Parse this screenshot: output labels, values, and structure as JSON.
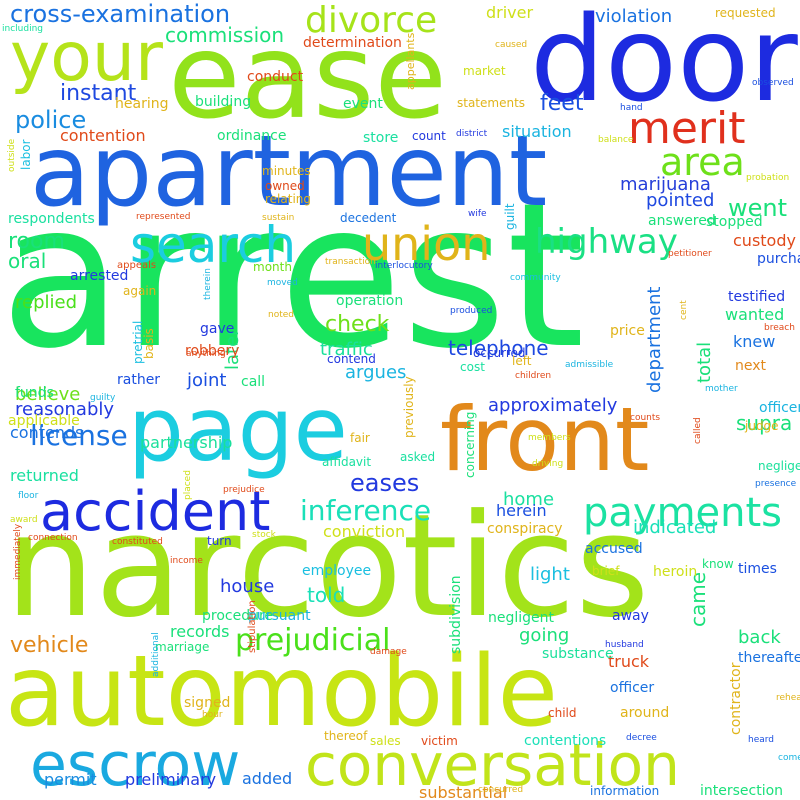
{
  "words": [
    {
      "text": "arrest",
      "color": "#18e45e"
    },
    {
      "text": "narcotics",
      "color": "#a3e31a"
    },
    {
      "text": "automobile",
      "color": "#c7e514"
    },
    {
      "text": "apartment",
      "color": "#1f63e0"
    },
    {
      "text": "ease",
      "color": "#92e21b"
    },
    {
      "text": "door",
      "color": "#1d2be0"
    },
    {
      "text": "page",
      "color": "#1bcde0"
    },
    {
      "text": "front",
      "color": "#e2891b"
    },
    {
      "text": "your",
      "color": "#b5e31a"
    },
    {
      "text": "conversation",
      "color": "#c1e41a"
    },
    {
      "text": "escrow",
      "color": "#1aa9e0"
    },
    {
      "text": "accident",
      "color": "#1d2be0"
    },
    {
      "text": "search",
      "color": "#1bcde0"
    },
    {
      "text": "union",
      "color": "#e0b41a"
    },
    {
      "text": "merit",
      "color": "#e0301d"
    },
    {
      "text": "area",
      "color": "#6ee01a"
    },
    {
      "text": "payments",
      "color": "#1be2a2"
    },
    {
      "text": "divorce",
      "color": "#a6e31a"
    },
    {
      "text": "highway",
      "color": "#1ae084"
    },
    {
      "text": "prejudicial",
      "color": "#4ae01a"
    },
    {
      "text": "license",
      "color": "#1a72e0"
    },
    {
      "text": "inference",
      "color": "#1ae0b8"
    },
    {
      "text": "eases",
      "color": "#2239df"
    },
    {
      "text": "cross-examination",
      "color": "#1a72e0"
    },
    {
      "text": "police",
      "color": "#1a8ce0"
    },
    {
      "text": "instant",
      "color": "#1e48e0"
    },
    {
      "text": "commission",
      "color": "#1ae07a"
    },
    {
      "text": "feet",
      "color": "#1a4fe0"
    },
    {
      "text": "room",
      "color": "#1ae07a"
    },
    {
      "text": "went",
      "color": "#1ae07a"
    },
    {
      "text": "violation",
      "color": "#1a72e0"
    },
    {
      "text": "driver",
      "color": "#cfe01a"
    },
    {
      "text": "marijuana",
      "color": "#263fd9"
    },
    {
      "text": "situation",
      "color": "#1ab4e0"
    },
    {
      "text": "pointed",
      "color": "#1e48e0"
    },
    {
      "text": "approximately",
      "color": "#2239df"
    },
    {
      "text": "telephone",
      "color": "#1e48e0"
    },
    {
      "text": "check",
      "color": "#6ee01a"
    },
    {
      "text": "traffic",
      "color": "#1ae09b"
    },
    {
      "text": "vehicle",
      "color": "#e2891b"
    },
    {
      "text": "records",
      "color": "#1ae07a"
    },
    {
      "text": "preliminary",
      "color": "#2239df"
    },
    {
      "text": "added",
      "color": "#1a72e0"
    },
    {
      "text": "told",
      "color": "#1ae0b8"
    },
    {
      "text": "home",
      "color": "#1ae0a0"
    },
    {
      "text": "light",
      "color": "#1abfe0"
    },
    {
      "text": "house",
      "color": "#2239df"
    },
    {
      "text": "joint",
      "color": "#1a4fe0"
    },
    {
      "text": "contention",
      "color": "#e04a1a"
    },
    {
      "text": "replied",
      "color": "#4ae01a"
    },
    {
      "text": "believe",
      "color": "#6ee01a"
    },
    {
      "text": "reasonably",
      "color": "#2239df"
    },
    {
      "text": "contends",
      "color": "#1a72e0"
    },
    {
      "text": "partnership",
      "color": "#1ae09b"
    },
    {
      "text": "returned",
      "color": "#1ae0a0"
    },
    {
      "text": "argues",
      "color": "#1ab4e0"
    },
    {
      "text": "oral",
      "color": "#1ae07a"
    },
    {
      "text": "later",
      "color": "#1ae07a"
    },
    {
      "text": "department",
      "color": "#1a72e0"
    },
    {
      "text": "total",
      "color": "#1ae07a"
    },
    {
      "text": "supra",
      "color": "#1ae07a"
    },
    {
      "text": "indicated",
      "color": "#1ae0b8"
    },
    {
      "text": "herein",
      "color": "#1a4fe0"
    },
    {
      "text": "conviction",
      "color": "#cfe01a"
    },
    {
      "text": "came",
      "color": "#1ae07a"
    },
    {
      "text": "back",
      "color": "#1ae07a"
    },
    {
      "text": "truck",
      "color": "#e04a1a"
    },
    {
      "text": "going",
      "color": "#1ae07a"
    },
    {
      "text": "permit",
      "color": "#1a8ce0"
    },
    {
      "text": "contentions",
      "color": "#1ae0b8"
    },
    {
      "text": "substantial",
      "color": "#e2891b"
    },
    {
      "text": "stopped",
      "color": "#1ae07a"
    },
    {
      "text": "answered",
      "color": "#1ae07a"
    },
    {
      "text": "custody",
      "color": "#e04a1a"
    },
    {
      "text": "wanted",
      "color": "#1ae07a"
    },
    {
      "text": "knew",
      "color": "#1a72e0"
    },
    {
      "text": "operation",
      "color": "#1ae07a"
    },
    {
      "text": "gave",
      "color": "#2239df"
    },
    {
      "text": "robbery",
      "color": "#e04a1a"
    },
    {
      "text": "rather",
      "color": "#1a4fe0"
    },
    {
      "text": "call",
      "color": "#1ae07a"
    },
    {
      "text": "basis",
      "color": "#e0b41a"
    },
    {
      "text": "funds",
      "color": "#1ae07a"
    },
    {
      "text": "pretrial",
      "color": "#1abfe0"
    },
    {
      "text": "building",
      "color": "#1ae07a"
    },
    {
      "text": "ordinance",
      "color": "#1ae07a"
    },
    {
      "text": "hearing",
      "color": "#e0b41a"
    },
    {
      "text": "determination",
      "color": "#e04a1a"
    },
    {
      "text": "conduct",
      "color": "#e04a1a"
    },
    {
      "text": "event",
      "color": "#1ae07a"
    },
    {
      "text": "store",
      "color": "#1ae0a0"
    },
    {
      "text": "statements",
      "color": "#e0b41a"
    },
    {
      "text": "count",
      "color": "#2239df"
    },
    {
      "text": "market",
      "color": "#cfe01a"
    },
    {
      "text": "requested",
      "color": "#e0b41a"
    },
    {
      "text": "respondents",
      "color": "#1ae0a0"
    },
    {
      "text": "arrested",
      "color": "#2239df"
    },
    {
      "text": "month",
      "color": "#6ee01a"
    },
    {
      "text": "purchased",
      "color": "#1a4fe0"
    },
    {
      "text": "testified",
      "color": "#2239df"
    },
    {
      "text": "occurred",
      "color": "#2239df"
    },
    {
      "text": "price",
      "color": "#e0b41a"
    },
    {
      "text": "next",
      "color": "#e2891b"
    },
    {
      "text": "officers",
      "color": "#1ab4e0"
    },
    {
      "text": "judge",
      "color": "#e0b41a"
    },
    {
      "text": "minutes",
      "color": "#e0b41a"
    },
    {
      "text": "owned",
      "color": "#e04a1a"
    },
    {
      "text": "relating",
      "color": "#e0b41a"
    },
    {
      "text": "decedent",
      "color": "#1a72e0"
    },
    {
      "text": "labor",
      "color": "#1abfe0"
    },
    {
      "text": "again",
      "color": "#e0b41a"
    },
    {
      "text": "cost",
      "color": "#1ae0a0"
    },
    {
      "text": "left",
      "color": "#e0b41a"
    },
    {
      "text": "contend",
      "color": "#2239df"
    },
    {
      "text": "fair",
      "color": "#e0b41a"
    },
    {
      "text": "affidavit",
      "color": "#1ae0a0"
    },
    {
      "text": "asked",
      "color": "#1ae0a0"
    },
    {
      "text": "previously",
      "color": "#e0b41a"
    },
    {
      "text": "applicable",
      "color": "#cfe01a"
    },
    {
      "text": "concerning",
      "color": "#1ae07a"
    },
    {
      "text": "negligence",
      "color": "#1ae09b"
    },
    {
      "text": "conspiracy",
      "color": "#e0b41a"
    },
    {
      "text": "accused",
      "color": "#1a72e0"
    },
    {
      "text": "employee",
      "color": "#1abfe0"
    },
    {
      "text": "turn",
      "color": "#2239df"
    },
    {
      "text": "procedure",
      "color": "#1ae07a"
    },
    {
      "text": "pursuant",
      "color": "#1ab4e0"
    },
    {
      "text": "brief",
      "color": "#cfe01a"
    },
    {
      "text": "heroin",
      "color": "#cfe01a"
    },
    {
      "text": "know",
      "color": "#1ae07a"
    },
    {
      "text": "times",
      "color": "#1a4fe0"
    },
    {
      "text": "negligent",
      "color": "#1ae07a"
    },
    {
      "text": "away",
      "color": "#2239df"
    },
    {
      "text": "subdivision",
      "color": "#1ae07a"
    },
    {
      "text": "thereafter",
      "color": "#1a72e0"
    },
    {
      "text": "substance",
      "color": "#1ae09b"
    },
    {
      "text": "officer",
      "color": "#1a72e0"
    },
    {
      "text": "around",
      "color": "#e0b41a"
    },
    {
      "text": "child",
      "color": "#e04a1a"
    },
    {
      "text": "marriage",
      "color": "#1ae07a"
    },
    {
      "text": "signed",
      "color": "#e0b41a"
    },
    {
      "text": "contractor",
      "color": "#e0b41a"
    },
    {
      "text": "sales",
      "color": "#cfe01a"
    },
    {
      "text": "victim",
      "color": "#e04a1a"
    },
    {
      "text": "thereof",
      "color": "#e0b41a"
    },
    {
      "text": "information",
      "color": "#1a72e0"
    },
    {
      "text": "intersection",
      "color": "#1ae07a"
    },
    {
      "text": "including",
      "color": "#1ae0a0"
    },
    {
      "text": "appellants",
      "color": "#e0b41a"
    },
    {
      "text": "caused",
      "color": "#e0b41a"
    },
    {
      "text": "observed",
      "color": "#1a4fe0"
    },
    {
      "text": "hand",
      "color": "#1a4fe0"
    },
    {
      "text": "district",
      "color": "#2239df"
    },
    {
      "text": "balance",
      "color": "#cfe01a"
    },
    {
      "text": "probation",
      "color": "#cfe01a"
    },
    {
      "text": "outside",
      "color": "#cfe01a"
    },
    {
      "text": "represented",
      "color": "#e04a1a"
    },
    {
      "text": "sustain",
      "color": "#e0b41a"
    },
    {
      "text": "wife",
      "color": "#2239df"
    },
    {
      "text": "guilt",
      "color": "#1ab4e0"
    },
    {
      "text": "appeals",
      "color": "#e04a1a"
    },
    {
      "text": "transaction",
      "color": "#e0b41a"
    },
    {
      "text": "petitioner",
      "color": "#e04a1a"
    },
    {
      "text": "interlocutory",
      "color": "#1a4fe0"
    },
    {
      "text": "community",
      "color": "#1abfe0"
    },
    {
      "text": "moved",
      "color": "#1ab4e0"
    },
    {
      "text": "therein",
      "color": "#1ab4e0"
    },
    {
      "text": "noted",
      "color": "#e0b41a"
    },
    {
      "text": "produced",
      "color": "#1a4fe0"
    },
    {
      "text": "cent",
      "color": "#e0b41a"
    },
    {
      "text": "breach",
      "color": "#e04a1a"
    },
    {
      "text": "anything",
      "color": "#e04a1a"
    },
    {
      "text": "admissible",
      "color": "#1ab4e0"
    },
    {
      "text": "children",
      "color": "#e04a1a"
    },
    {
      "text": "mother",
      "color": "#1ab4e0"
    },
    {
      "text": "guilty",
      "color": "#1ab4e0"
    },
    {
      "text": "counts",
      "color": "#e04a1a"
    },
    {
      "text": "members",
      "color": "#cfe01a"
    },
    {
      "text": "driving",
      "color": "#cfe01a"
    },
    {
      "text": "called",
      "color": "#e04a1a"
    },
    {
      "text": "presence",
      "color": "#1a72e0"
    },
    {
      "text": "floor",
      "color": "#1ab4e0"
    },
    {
      "text": "placed",
      "color": "#cfe01a"
    },
    {
      "text": "prejudice",
      "color": "#e04a1a"
    },
    {
      "text": "award",
      "color": "#cfe01a"
    },
    {
      "text": "connection",
      "color": "#e04a1a"
    },
    {
      "text": "constituted",
      "color": "#e04a1a"
    },
    {
      "text": "stock",
      "color": "#cfe01a"
    },
    {
      "text": "income",
      "color": "#e04a1a"
    },
    {
      "text": "immediately",
      "color": "#e04a1a"
    },
    {
      "text": "husband",
      "color": "#2239df"
    },
    {
      "text": "decree",
      "color": "#1a4fe0"
    },
    {
      "text": "damage",
      "color": "#e04a1a"
    },
    {
      "text": "stipulation",
      "color": "#e04a1a"
    },
    {
      "text": "additional",
      "color": "#1ab4e0"
    },
    {
      "text": "hour",
      "color": "#e0b41a"
    },
    {
      "text": "rehearing",
      "color": "#e0b41a"
    },
    {
      "text": "heard",
      "color": "#1a4fe0"
    },
    {
      "text": "come",
      "color": "#1ab4e0"
    },
    {
      "text": "concurred",
      "color": "#e0b41a"
    }
  ]
}
